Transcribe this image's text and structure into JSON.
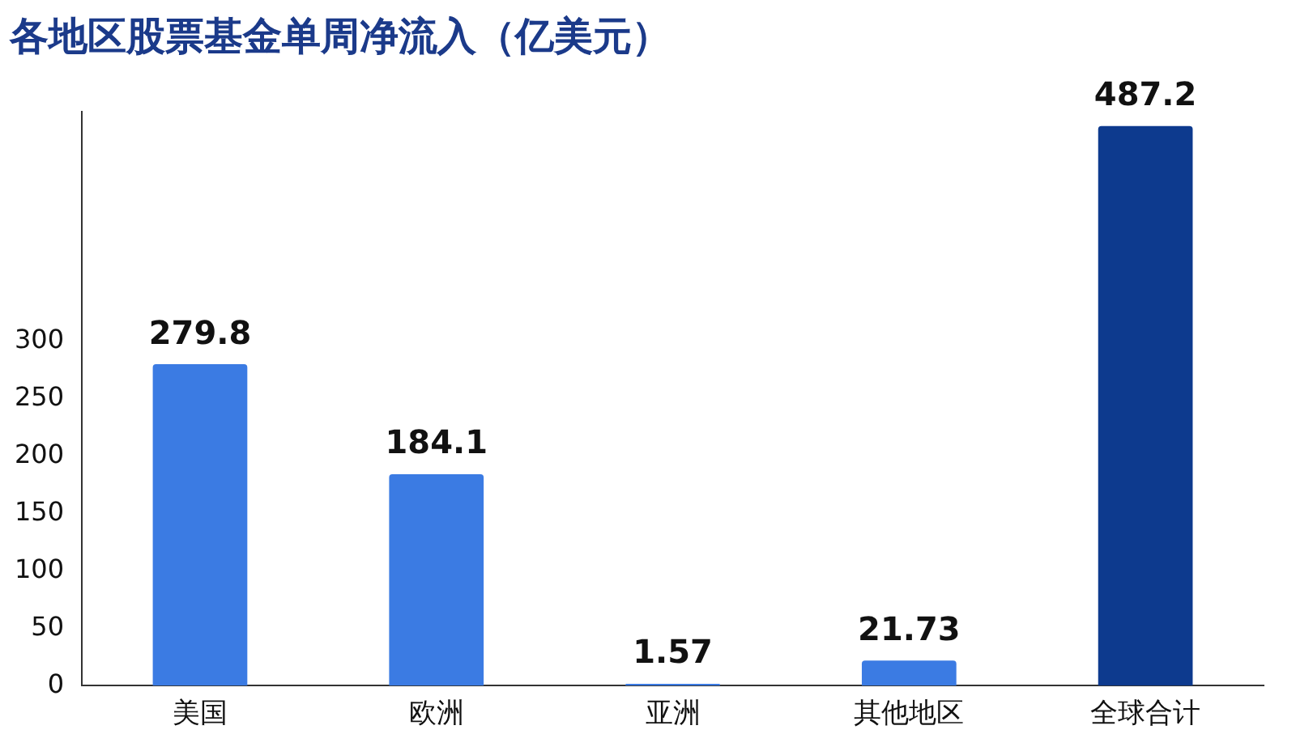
{
  "chart_data": {
    "type": "bar",
    "title": "各地区股票基金单周净流入（亿美元）",
    "categories": [
      "美国",
      "欧洲",
      "亚洲",
      "其他地区",
      "全球合计"
    ],
    "values": [
      279.8,
      184.1,
      1.57,
      21.73,
      487.2
    ],
    "colors": [
      "#3b7be3",
      "#3b7be3",
      "#3b7be3",
      "#3b7be3",
      "#0d3a8e"
    ],
    "ylim": [
      0,
      500
    ],
    "yticks": [
      0,
      50,
      100,
      150,
      200,
      250,
      300
    ],
    "grid": false,
    "legend": false,
    "data_labels": true
  }
}
